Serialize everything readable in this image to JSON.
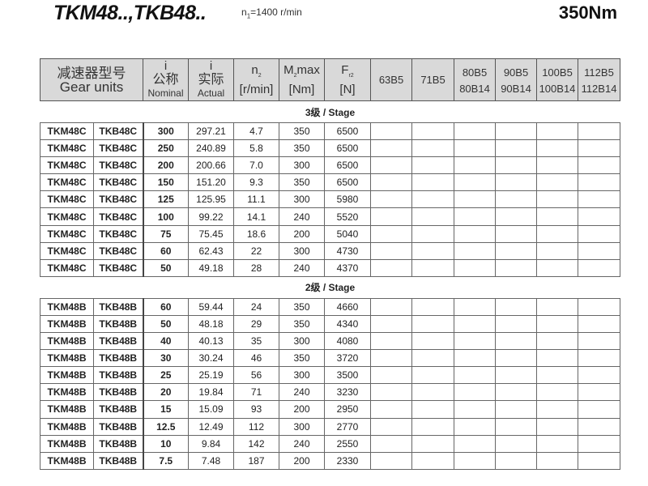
{
  "title": "TKM48..,TKB48..",
  "input_speed": {
    "label": "n",
    "sub": "1",
    "value": "=1400 r/min"
  },
  "torque": "350Nm",
  "header": {
    "gear_units_cn": "减速器型号",
    "gear_units_en": "Gear units",
    "i_nominal": {
      "sym": "i",
      "cn": "公称",
      "en": "Nominal"
    },
    "i_actual": {
      "sym": "i",
      "cn": "实际",
      "en": "Actual"
    },
    "n2": {
      "sym": "n",
      "sub": "2",
      "unit": "[r/min]"
    },
    "m2max": {
      "sym": "M",
      "sub": "2",
      "rest": "max",
      "unit": "[Nm]"
    },
    "fr2": {
      "sym": "F",
      "sub": "r2",
      "unit": "[N]"
    },
    "motors": [
      [
        "63B5",
        ""
      ],
      [
        "71B5",
        ""
      ],
      [
        "80B5",
        "80B14"
      ],
      [
        "90B5",
        "90B14"
      ],
      [
        "100B5",
        "100B14"
      ],
      [
        "112B5",
        "112B14"
      ]
    ]
  },
  "sections": [
    {
      "label": "3级 / Stage",
      "rows": [
        [
          "TKM48C",
          "TKB48C",
          "300",
          "297.21",
          "4.7",
          "350",
          "6500"
        ],
        [
          "TKM48C",
          "TKB48C",
          "250",
          "240.89",
          "5.8",
          "350",
          "6500"
        ],
        [
          "TKM48C",
          "TKB48C",
          "200",
          "200.66",
          "7.0",
          "300",
          "6500"
        ],
        [
          "TKM48C",
          "TKB48C",
          "150",
          "151.20",
          "9.3",
          "350",
          "6500"
        ],
        [
          "TKM48C",
          "TKB48C",
          "125",
          "125.95",
          "11.1",
          "300",
          "5980"
        ],
        [
          "TKM48C",
          "TKB48C",
          "100",
          "99.22",
          "14.1",
          "240",
          "5520"
        ],
        [
          "TKM48C",
          "TKB48C",
          "75",
          "75.45",
          "18.6",
          "200",
          "5040"
        ],
        [
          "TKM48C",
          "TKB48C",
          "60",
          "62.43",
          "22",
          "300",
          "4730"
        ],
        [
          "TKM48C",
          "TKB48C",
          "50",
          "49.18",
          "28",
          "240",
          "4370"
        ]
      ]
    },
    {
      "label": "2级 / Stage",
      "rows": [
        [
          "TKM48B",
          "TKB48B",
          "60",
          "59.44",
          "24",
          "350",
          "4660"
        ],
        [
          "TKM48B",
          "TKB48B",
          "50",
          "48.18",
          "29",
          "350",
          "4340"
        ],
        [
          "TKM48B",
          "TKB48B",
          "40",
          "40.13",
          "35",
          "300",
          "4080"
        ],
        [
          "TKM48B",
          "TKB48B",
          "30",
          "30.24",
          "46",
          "350",
          "3720"
        ],
        [
          "TKM48B",
          "TKB48B",
          "25",
          "25.19",
          "56",
          "300",
          "3500"
        ],
        [
          "TKM48B",
          "TKB48B",
          "20",
          "19.84",
          "71",
          "240",
          "3230"
        ],
        [
          "TKM48B",
          "TKB48B",
          "15",
          "15.09",
          "93",
          "200",
          "2950"
        ],
        [
          "TKM48B",
          "TKB48B",
          "12.5",
          "12.49",
          "112",
          "300",
          "2770"
        ],
        [
          "TKM48B",
          "TKB48B",
          "10",
          "9.84",
          "142",
          "240",
          "2550"
        ],
        [
          "TKM48B",
          "TKB48B",
          "7.5",
          "7.48",
          "187",
          "200",
          "2330"
        ]
      ]
    }
  ]
}
